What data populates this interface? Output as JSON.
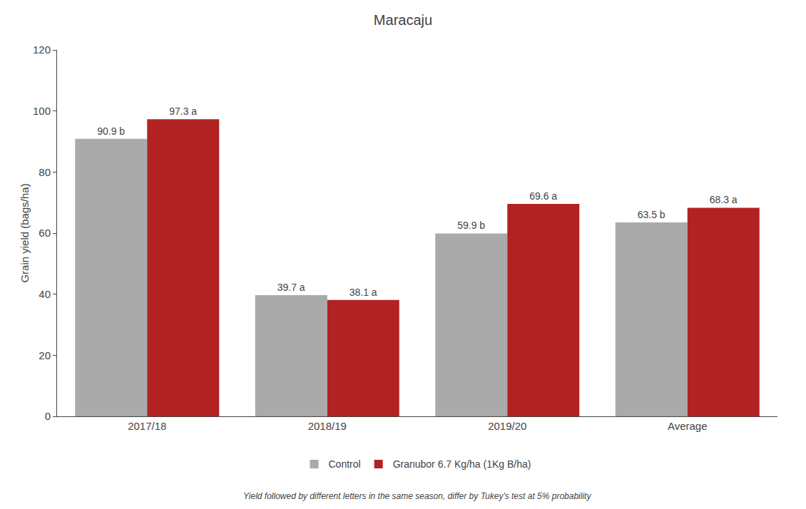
{
  "chart_data": {
    "type": "bar",
    "title": "Maracaju",
    "ylabel": "Grain yield (bags/ha)",
    "categories": [
      "2017/18",
      "2018/19",
      "2019/20",
      "Average"
    ],
    "series": [
      {
        "name": "Control",
        "color": "#AAAAAA",
        "values": [
          90.9,
          39.7,
          59.9,
          63.5
        ],
        "value_labels": [
          "90.9 b",
          "39.7 a",
          "59.9 b",
          "63.5 b"
        ]
      },
      {
        "name": "Granubor 6.7 Kg/ha (1Kg B/ha)",
        "color": "#B22222",
        "values": [
          97.3,
          38.1,
          69.6,
          68.3
        ],
        "value_labels": [
          "97.3 a",
          "38.1 a",
          "69.6 a",
          "68.3 a"
        ]
      }
    ],
    "ylim": [
      0,
      120
    ],
    "yticks": [
      0,
      20,
      40,
      60,
      80,
      100,
      120
    ],
    "grid": false,
    "legend": "bottom",
    "data_labels": true,
    "annotations": [
      "Yield followed by different letters in the same season, differ by Tukey's test at 5% probability"
    ]
  }
}
